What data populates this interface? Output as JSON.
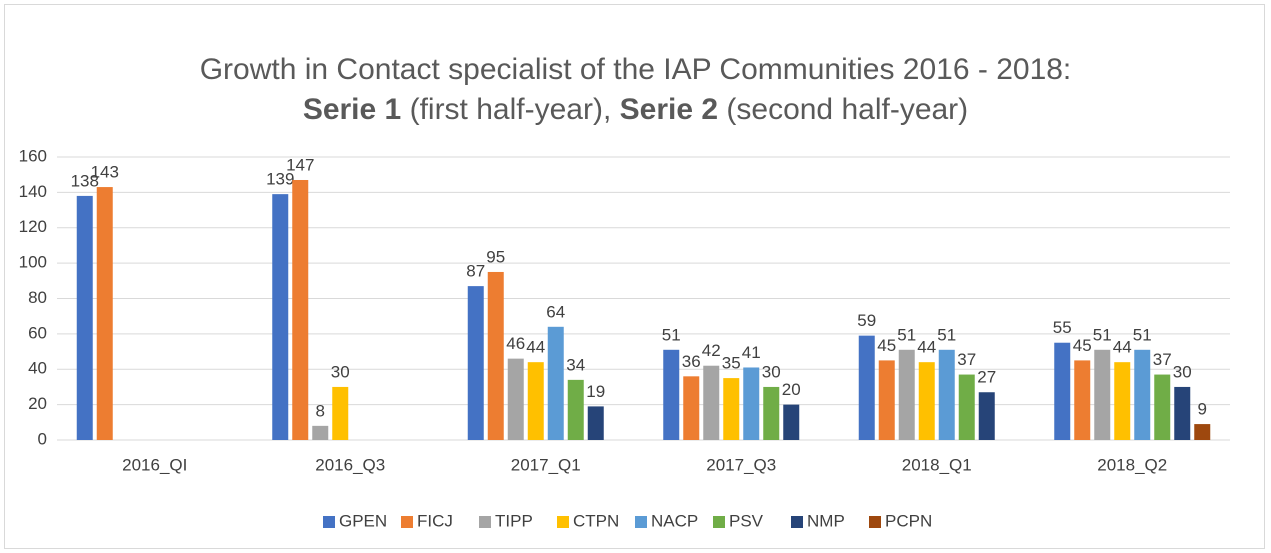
{
  "chart_data": {
    "type": "bar",
    "title": "Growth in Contact specialist of the IAP Communities 2016 - 2018:",
    "subtitle_parts": [
      "Serie 1",
      "(first half-year),",
      "Serie 2",
      "(second half-year)"
    ],
    "categories": [
      "2016_QI",
      "2016_Q3",
      "2017_Q1",
      "2017_Q3",
      "2018_Q1",
      "2018_Q2"
    ],
    "series": [
      {
        "name": "GPEN",
        "color": "#4472c4",
        "values": [
          138,
          139,
          87,
          51,
          59,
          55
        ]
      },
      {
        "name": "FICJ",
        "color": "#ed7d31",
        "values": [
          143,
          147,
          95,
          36,
          45,
          45
        ]
      },
      {
        "name": "TIPP",
        "color": "#a5a5a5",
        "values": [
          null,
          8,
          46,
          42,
          51,
          51
        ]
      },
      {
        "name": "CTPN",
        "color": "#ffc000",
        "values": [
          null,
          30,
          44,
          35,
          44,
          44
        ]
      },
      {
        "name": "NACP",
        "color": "#5b9bd5",
        "values": [
          null,
          null,
          64,
          41,
          51,
          51
        ]
      },
      {
        "name": "PSV",
        "color": "#70ad47",
        "values": [
          null,
          null,
          34,
          30,
          37,
          37
        ]
      },
      {
        "name": "NMP",
        "color": "#264478",
        "values": [
          null,
          null,
          19,
          20,
          27,
          30
        ]
      },
      {
        "name": "PCPN",
        "color": "#9e480e",
        "values": [
          null,
          null,
          null,
          null,
          null,
          9
        ]
      }
    ],
    "ylim": [
      0,
      160
    ],
    "yticks": [
      0,
      20,
      40,
      60,
      80,
      100,
      120,
      140,
      160
    ],
    "grid": true,
    "legend": "bottom"
  }
}
